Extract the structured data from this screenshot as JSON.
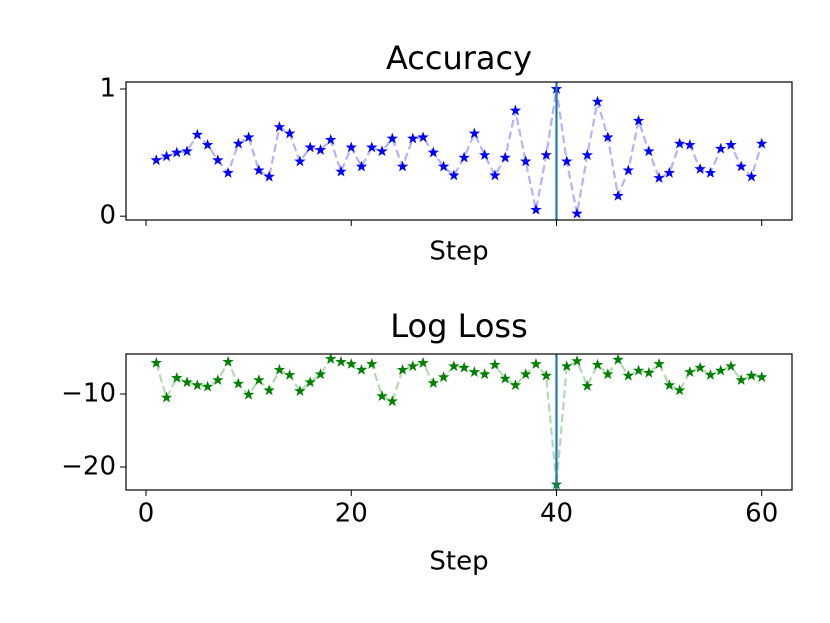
{
  "chart_data": [
    {
      "type": "line",
      "title": "Accuracy",
      "x_label": "Step",
      "x": [
        1,
        2,
        3,
        4,
        5,
        6,
        7,
        8,
        9,
        10,
        11,
        12,
        13,
        14,
        15,
        16,
        17,
        18,
        19,
        20,
        21,
        22,
        23,
        24,
        25,
        26,
        27,
        28,
        29,
        30,
        31,
        32,
        33,
        34,
        35,
        36,
        37,
        38,
        39,
        40,
        41,
        42,
        43,
        44,
        45,
        46,
        47,
        48,
        49,
        50,
        51,
        52,
        53,
        54,
        55,
        56,
        57,
        58,
        59,
        60
      ],
      "series": [
        {
          "color": "#0000ff",
          "values": [
            0.44,
            0.47,
            0.5,
            0.51,
            0.64,
            0.56,
            0.44,
            0.34,
            0.57,
            0.62,
            0.36,
            0.31,
            0.7,
            0.65,
            0.43,
            0.54,
            0.52,
            0.6,
            0.35,
            0.54,
            0.39,
            0.54,
            0.51,
            0.61,
            0.39,
            0.61,
            0.62,
            0.5,
            0.39,
            0.32,
            0.46,
            0.65,
            0.48,
            0.32,
            0.46,
            0.83,
            0.43,
            0.05,
            0.48,
            1.0,
            0.43,
            0.02,
            0.48,
            0.9,
            0.62,
            0.16,
            0.36,
            0.75,
            0.51,
            0.3,
            0.34,
            0.57,
            0.56,
            0.37,
            0.34,
            0.53,
            0.56,
            0.39,
            0.31,
            0.57
          ]
        }
      ],
      "vline": 40,
      "vline_color": "#1f77b4",
      "xlim": [
        -1.95,
        62.95
      ],
      "xticks": [
        0,
        20,
        40,
        60
      ],
      "show_xtick_labels": false,
      "ylim": [
        -0.03,
        1.055
      ],
      "yticks": [
        0,
        1
      ]
    },
    {
      "type": "line",
      "title": "Log Loss",
      "x_label": "Step",
      "x": [
        1,
        2,
        3,
        4,
        5,
        6,
        7,
        8,
        9,
        10,
        11,
        12,
        13,
        14,
        15,
        16,
        17,
        18,
        19,
        20,
        21,
        22,
        23,
        24,
        25,
        26,
        27,
        28,
        29,
        30,
        31,
        32,
        33,
        34,
        35,
        36,
        37,
        38,
        39,
        40,
        41,
        42,
        43,
        44,
        45,
        46,
        47,
        48,
        49,
        50,
        51,
        52,
        53,
        54,
        55,
        56,
        57,
        58,
        59,
        60
      ],
      "series": [
        {
          "color": "#008000",
          "values": [
            -5.75,
            -10.5,
            -7.8,
            -8.4,
            -8.8,
            -9.0,
            -8.1,
            -5.6,
            -8.6,
            -10.1,
            -8.1,
            -9.5,
            -6.7,
            -7.4,
            -9.6,
            -8.4,
            -7.3,
            -5.2,
            -5.6,
            -5.9,
            -6.7,
            -5.9,
            -10.3,
            -11.0,
            -6.7,
            -6.2,
            -5.75,
            -8.5,
            -7.7,
            -6.2,
            -6.4,
            -7.0,
            -7.3,
            -6.0,
            -7.9,
            -8.8,
            -7.3,
            -5.9,
            -7.5,
            -22.4,
            -6.2,
            -5.5,
            -8.9,
            -6.0,
            -7.3,
            -5.3,
            -7.5,
            -6.8,
            -7.1,
            -5.9,
            -8.8,
            -9.5,
            -7.0,
            -6.4,
            -7.4,
            -6.8,
            -6.2,
            -8.1,
            -7.5,
            -7.7
          ]
        }
      ],
      "vline": 40,
      "vline_color": "#1f77b4",
      "xlim": [
        -1.95,
        62.95
      ],
      "xticks": [
        0,
        20,
        40,
        60
      ],
      "show_xtick_labels": true,
      "ylim": [
        -23.15,
        -4.52
      ],
      "yticks": [
        {
          "value": -10,
          "label": "−10"
        },
        {
          "value": -20,
          "label": "−20"
        }
      ]
    }
  ]
}
